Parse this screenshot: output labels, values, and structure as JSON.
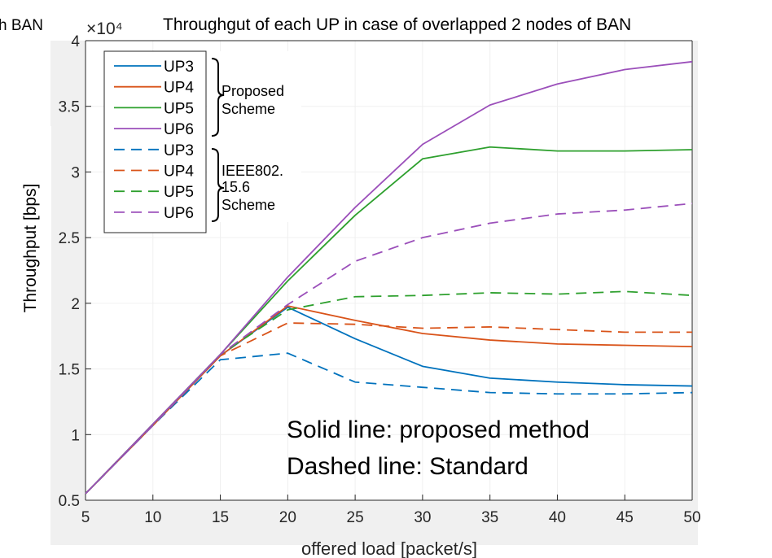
{
  "chart_data": {
    "type": "line",
    "title": "Throughgut of each UP in case of overlapped 2 nodes of BAN",
    "title_left_fragment": "h BAN",
    "xlabel": "offered load [packet/s]",
    "ylabel": "Throughput [bps]",
    "y_exponent_label": "×10⁴",
    "xlim": [
      5,
      50
    ],
    "ylim": [
      0.5,
      4
    ],
    "xticks": [
      "5",
      "10",
      "15",
      "20",
      "25",
      "30",
      "35",
      "40",
      "45",
      "50"
    ],
    "yticks": [
      "0.5",
      "1",
      "1.5",
      "2",
      "2.5",
      "3",
      "3.5",
      "4"
    ],
    "x": [
      5,
      10,
      15,
      20,
      25,
      30,
      35,
      40,
      45,
      50
    ],
    "grid": true,
    "legend_position": "top-left",
    "series": [
      {
        "name": "UP3",
        "group": "proposed",
        "color": "#0072BD",
        "dash": false,
        "values": [
          0.55,
          1.07,
          1.6,
          1.97,
          1.73,
          1.52,
          1.43,
          1.4,
          1.38,
          1.37
        ]
      },
      {
        "name": "UP4",
        "group": "proposed",
        "color": "#D95319",
        "dash": false,
        "values": [
          0.55,
          1.07,
          1.6,
          1.98,
          1.87,
          1.77,
          1.72,
          1.69,
          1.68,
          1.67
        ]
      },
      {
        "name": "UP5",
        "group": "proposed",
        "color": "#2EA02E",
        "dash": false,
        "values": [
          0.55,
          1.08,
          1.61,
          2.17,
          2.67,
          3.1,
          3.19,
          3.16,
          3.16,
          3.17
        ]
      },
      {
        "name": "UP6",
        "group": "proposed",
        "color": "#9B4FBA",
        "dash": false,
        "values": [
          0.55,
          1.08,
          1.61,
          2.2,
          2.73,
          3.21,
          3.51,
          3.67,
          3.78,
          3.84
        ]
      },
      {
        "name": "UP3",
        "group": "standard",
        "color": "#0072BD",
        "dash": true,
        "values": [
          0.55,
          1.07,
          1.57,
          1.62,
          1.4,
          1.36,
          1.32,
          1.31,
          1.31,
          1.32
        ]
      },
      {
        "name": "UP4",
        "group": "standard",
        "color": "#D95319",
        "dash": true,
        "values": [
          0.55,
          1.07,
          1.6,
          1.85,
          1.84,
          1.81,
          1.82,
          1.8,
          1.78,
          1.78
        ]
      },
      {
        "name": "UP5",
        "group": "standard",
        "color": "#2EA02E",
        "dash": true,
        "values": [
          0.55,
          1.07,
          1.61,
          1.95,
          2.05,
          2.06,
          2.08,
          2.07,
          2.09,
          2.06
        ]
      },
      {
        "name": "UP6",
        "group": "standard",
        "color": "#9B4FBA",
        "dash": true,
        "values": [
          0.55,
          1.07,
          1.61,
          1.99,
          2.32,
          2.5,
          2.61,
          2.68,
          2.71,
          2.76
        ]
      }
    ],
    "legend_groups": [
      {
        "label_lines": [
          "Proposed",
          "Scheme"
        ]
      },
      {
        "label_lines": [
          "IEEE802.",
          "15.6",
          "Scheme"
        ]
      }
    ],
    "annotations": [
      "Solid line: proposed method",
      "Dashed line: Standard"
    ]
  }
}
